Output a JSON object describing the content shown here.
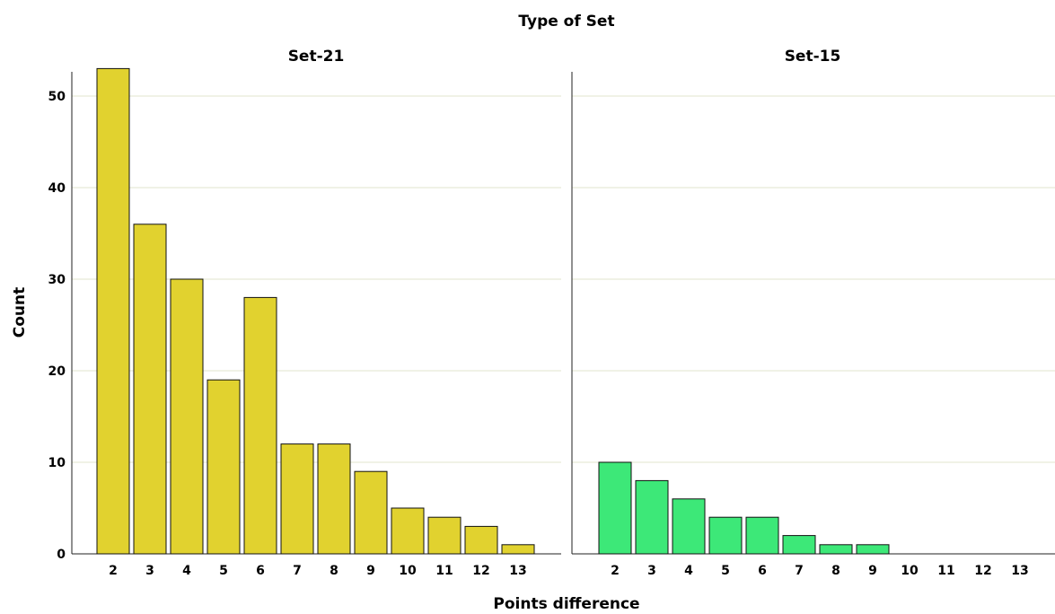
{
  "chart_data": {
    "type": "bar",
    "title": "Type of Set",
    "xlabel": "Points difference",
    "ylabel": "Count",
    "ylim": [
      0,
      53
    ],
    "yticks": [
      0,
      10,
      20,
      30,
      40,
      50
    ],
    "grid": true,
    "categories": [
      "2",
      "3",
      "4",
      "5",
      "6",
      "7",
      "8",
      "9",
      "10",
      "11",
      "12",
      "13"
    ],
    "panels": [
      {
        "name": "Set-21",
        "color": "#e1d22f",
        "values": [
          53,
          36,
          30,
          19,
          28,
          12,
          12,
          9,
          5,
          4,
          3,
          1
        ]
      },
      {
        "name": "Set-15",
        "color": "#3de878",
        "values": [
          10,
          8,
          6,
          4,
          4,
          2,
          1,
          1,
          0,
          0,
          0,
          0
        ]
      }
    ]
  }
}
